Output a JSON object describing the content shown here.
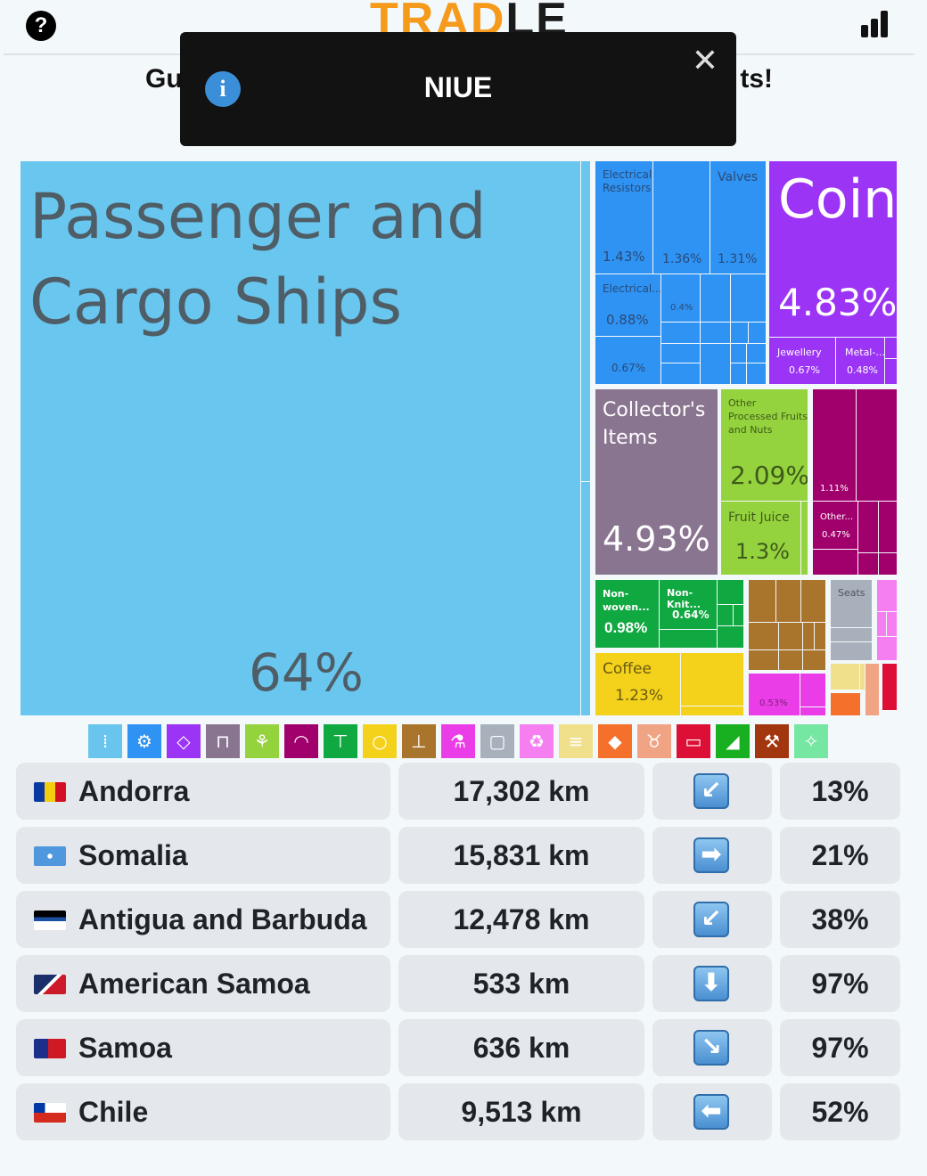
{
  "header": {
    "help_icon": "?",
    "logo_part1": "TRAD",
    "logo_part2": "LE",
    "subtitle_left": "Gu",
    "subtitle_right": "ts!"
  },
  "toast": {
    "info_icon": "i",
    "title": "NIUE",
    "close_icon": "✕"
  },
  "treemap": {
    "passenger_ships": {
      "label": "Passenger and Cargo Ships",
      "pct": "64%"
    },
    "electrical_resistors": {
      "label": "Electrical Resistors",
      "pct": "1.43%"
    },
    "unlabeled_blue_1": {
      "pct": "1.36%"
    },
    "valves": {
      "label": "Valves",
      "pct": "1.31%"
    },
    "coin": {
      "label": "Coin",
      "pct": "4.83%"
    },
    "electrical2": {
      "label": "Electrical...",
      "pct": "0.88%"
    },
    "blue_04": {
      "pct": "0.4%"
    },
    "blue_067": {
      "pct": "0.67%"
    },
    "jewellery": {
      "label": "Jewellery",
      "pct": "0.67%"
    },
    "metal": {
      "label": "Metal-...",
      "pct": "0.48%"
    },
    "collectors_items": {
      "label": "Collector's Items",
      "pct": "4.93%"
    },
    "other_fruits": {
      "label": "Other Processed Fruits and Nuts",
      "pct": "2.09%"
    },
    "fruit_juice": {
      "label": "Fruit Juice",
      "pct": "1.3%"
    },
    "magenta_111": {
      "pct": "1.11%"
    },
    "other_mag": {
      "label": "Other...",
      "pct": "0.47%"
    },
    "non_woven": {
      "label": "Non-woven...",
      "pct": "0.98%"
    },
    "non_knit": {
      "label": "Non-Knit...",
      "pct": "0.64%"
    },
    "coffee": {
      "label": "Coffee",
      "pct": "1.23%"
    },
    "seats": {
      "label": "Seats"
    },
    "pink_053": {
      "pct": "0.53%"
    }
  },
  "categories": [
    {
      "icon": "road-icon",
      "glyph": "⁞",
      "color": "#6ac5ee"
    },
    {
      "icon": "gear-icon",
      "glyph": "⚙",
      "color": "#2f93f3"
    },
    {
      "icon": "diamond-icon",
      "glyph": "◇",
      "color": "#9b34f5"
    },
    {
      "icon": "easel-icon",
      "glyph": "⊓",
      "color": "#8a7590"
    },
    {
      "icon": "wheat-icon",
      "glyph": "⚘",
      "color": "#95d33e"
    },
    {
      "icon": "gauge-icon",
      "glyph": "◠",
      "color": "#a1006c"
    },
    {
      "icon": "shirt-icon",
      "glyph": "⊤",
      "color": "#10a840"
    },
    {
      "icon": "orange-icon",
      "glyph": "○",
      "color": "#f4d21b"
    },
    {
      "icon": "anvil-icon",
      "glyph": "⊥",
      "color": "#a9742b"
    },
    {
      "icon": "flask-icon",
      "glyph": "⚗",
      "color": "#eb3de7"
    },
    {
      "icon": "box-icon",
      "glyph": "▢",
      "color": "#a8b0bb"
    },
    {
      "icon": "recycle-icon",
      "glyph": "♻",
      "color": "#f57ef1"
    },
    {
      "icon": "scroll-icon",
      "glyph": "≡",
      "color": "#f0df8b"
    },
    {
      "icon": "rock-icon",
      "glyph": "◆",
      "color": "#f4702b"
    },
    {
      "icon": "cow-icon",
      "glyph": "♉",
      "color": "#f1a483"
    },
    {
      "icon": "pipe-icon",
      "glyph": "▭",
      "color": "#dd0f36"
    },
    {
      "icon": "shoe-icon",
      "glyph": "◢",
      "color": "#18b020"
    },
    {
      "icon": "pickaxe-icon",
      "glyph": "⚒",
      "color": "#a2360f"
    },
    {
      "icon": "leather-icon",
      "glyph": "✧",
      "color": "#76e6a3"
    }
  ],
  "guesses": [
    {
      "country": "Andorra",
      "distance": "17,302 km",
      "direction": "↙",
      "proximity": "13%"
    },
    {
      "country": "Somalia",
      "distance": "15,831 km",
      "direction": "➡",
      "proximity": "21%"
    },
    {
      "country": "Antigua and Barbuda",
      "distance": "12,478 km",
      "direction": "↙",
      "proximity": "38%"
    },
    {
      "country": "American Samoa",
      "distance": "533 km",
      "direction": "⬇",
      "proximity": "97%"
    },
    {
      "country": "Samoa",
      "distance": "636 km",
      "direction": "↘",
      "proximity": "97%"
    },
    {
      "country": "Chile",
      "distance": "9,513 km",
      "direction": "⬅",
      "proximity": "52%"
    }
  ]
}
